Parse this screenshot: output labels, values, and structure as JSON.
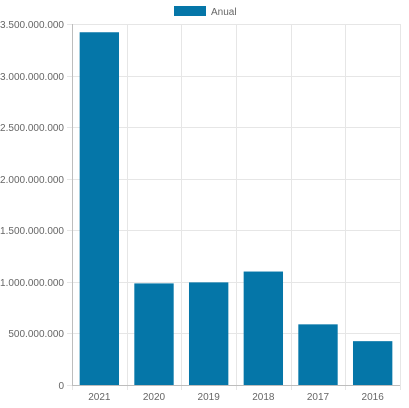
{
  "chart_data": {
    "type": "bar",
    "categories": [
      "2021",
      "2020",
      "2019",
      "2018",
      "2017",
      "2016"
    ],
    "series": [
      {
        "name": "Anual",
        "values": [
          3420000000,
          985000000,
          995000000,
          1100000000,
          588000000,
          425000000
        ]
      }
    ],
    "ylim": [
      0,
      3500000000
    ],
    "yticks": [
      0,
      500000000,
      1000000000,
      1500000000,
      2000000000,
      2500000000,
      3000000000,
      3500000000
    ],
    "ytick_labels": [
      "0",
      "500.000.000",
      "1.000.000.000",
      "1.500.000.000",
      "2.000.000.000",
      "2.500.000.000",
      "3.000.000.000",
      "3.500.000.000"
    ],
    "grid": true,
    "legend_position": "top-center",
    "colors": {
      "bar": "#0576a8",
      "grid": "#e6e6e6",
      "axis": "#bdbdbd",
      "text": "#666666"
    }
  }
}
